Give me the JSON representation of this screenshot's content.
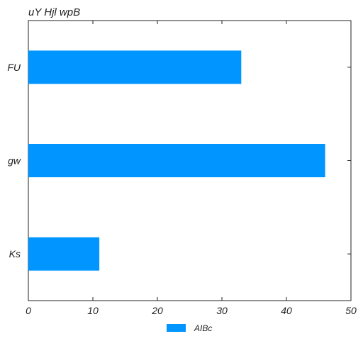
{
  "chart_data": {
    "type": "bar",
    "orientation": "horizontal",
    "title": "uY Hjl wpB",
    "xlabel": "",
    "ylabel": "",
    "categories": [
      "FU",
      "gw",
      "Ks"
    ],
    "series": [
      {
        "name": "AIBc",
        "values": [
          33,
          46,
          11
        ],
        "color": "#0095ff"
      }
    ],
    "xlim": [
      0,
      50
    ],
    "xticks": [
      0,
      10,
      20,
      30,
      40,
      50
    ],
    "grid": false,
    "legend_position": "bottom-center"
  }
}
